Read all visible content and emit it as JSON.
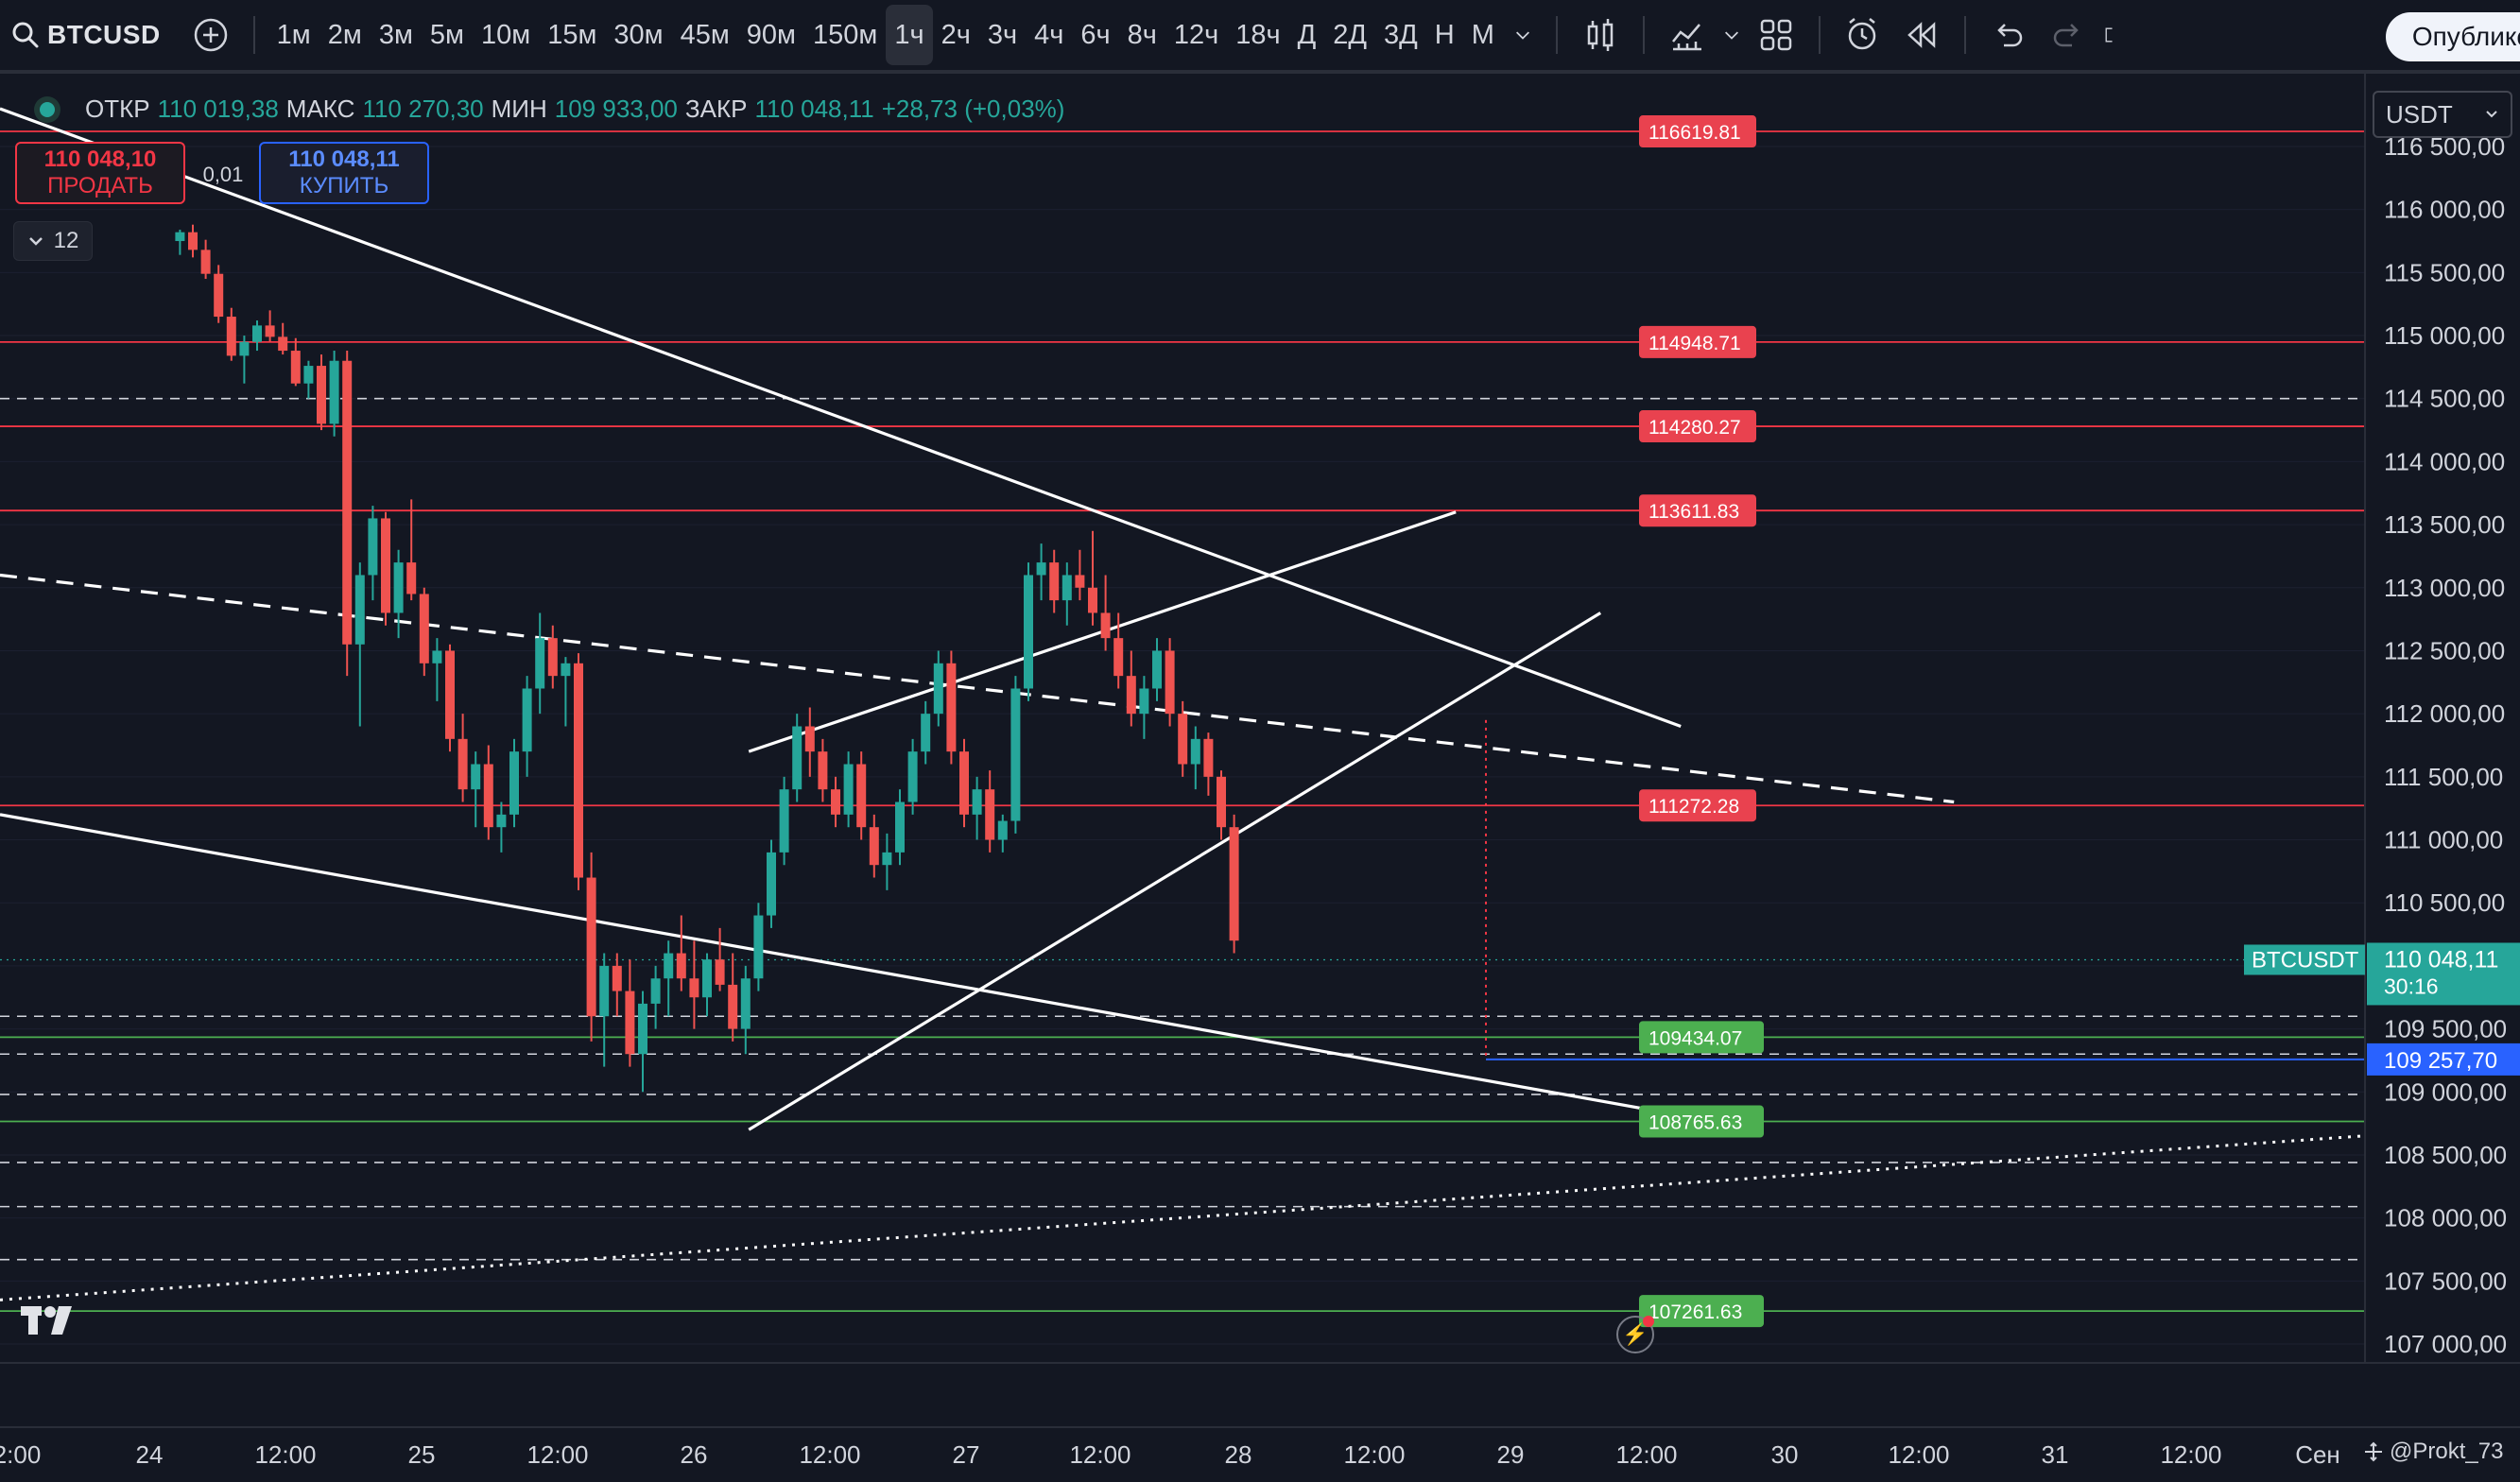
{
  "toolbar": {
    "symbol": "BTCUSD",
    "timeframes": [
      "1м",
      "2м",
      "3м",
      "5м",
      "10м",
      "15м",
      "30м",
      "45м",
      "90м",
      "150м",
      "1ч",
      "2ч",
      "3ч",
      "4ч",
      "6ч",
      "8ч",
      "12ч",
      "18ч",
      "Д",
      "2Д",
      "3Д",
      "Н",
      "М"
    ],
    "active_timeframe": "1ч",
    "publish_label": "Опублико"
  },
  "legend": {
    "open_label": "ОТКР",
    "open": "110 019,38",
    "high_label": "МАКС",
    "high": "110 270,30",
    "low_label": "МИН",
    "low": "109 933,00",
    "close_label": "ЗАКР",
    "close": "110 048,11",
    "change": "+28,73 (+0,03%)"
  },
  "trade": {
    "sell_price": "110 048,10",
    "sell_label": "ПРОДАТЬ",
    "spread": "0,01",
    "buy_price": "110 048,11",
    "buy_label": "КУПИТЬ"
  },
  "collapse_count": "12",
  "currency": "USDT",
  "credit": "@Prokt_73",
  "colors": {
    "up": "#26a69a",
    "down": "#ef5350",
    "bg": "#131722",
    "red_level": "#f23645",
    "green_level": "#4caf50",
    "blue_level": "#2962ff"
  },
  "chart_data": {
    "type": "candlestick",
    "symbol": "BTCUSDT",
    "ylim": [
      106800,
      116900
    ],
    "y_ticks": [
      "116 500,00",
      "116 000,00",
      "115 500,00",
      "115 000,00",
      "114 500,00",
      "114 000,00",
      "113 500,00",
      "113 000,00",
      "112 500,00",
      "112 000,00",
      "111 500,00",
      "111 000,00",
      "110 500,00",
      "110 000,00",
      "109 500,00",
      "109 000,00",
      "108 500,00",
      "108 000,00",
      "107 500,00",
      "107 000,00"
    ],
    "x_ticks": [
      "2:00",
      "24",
      "12:00",
      "25",
      "12:00",
      "26",
      "12:00",
      "27",
      "12:00",
      "28",
      "12:00",
      "29",
      "12:00",
      "30",
      "12:00",
      "31",
      "12:00",
      "Сен"
    ],
    "last_price": {
      "label": "BTCUSDT",
      "value": "110 048,11",
      "countdown": "30:16",
      "price": 110048.11
    },
    "blue_level": {
      "value": "109 257,70",
      "price": 109257.7
    },
    "levels": [
      {
        "label": "116619.81",
        "price": 116619.81,
        "kind": "resistance"
      },
      {
        "label": "114948.71",
        "price": 114948.71,
        "kind": "resistance"
      },
      {
        "label": "114280.27",
        "price": 114280.27,
        "kind": "resistance"
      },
      {
        "label": "113611.83",
        "price": 113611.83,
        "kind": "resistance"
      },
      {
        "label": "111272.28",
        "price": 111272.28,
        "kind": "resistance"
      },
      {
        "label": "109434.07",
        "price": 109434.07,
        "kind": "support"
      },
      {
        "label": "108765.63",
        "price": 108765.63,
        "kind": "support"
      },
      {
        "label": "107261.63",
        "price": 107261.63,
        "kind": "support"
      }
    ],
    "dashed_levels": [
      114500,
      109600,
      109300,
      108980,
      108440,
      108090,
      107670
    ],
    "trend_lines": [
      {
        "style": "solid",
        "from": [
          0,
          116800
        ],
        "to": [
          1046,
          111900
        ]
      },
      {
        "style": "solid",
        "from": [
          0,
          111200
        ],
        "to": [
          1096,
          108700
        ]
      },
      {
        "style": "dashed",
        "from": [
          0,
          113100
        ],
        "to": [
          1216,
          111300
        ]
      },
      {
        "style": "solid",
        "from": [
          466,
          111700
        ],
        "to": [
          906,
          113600
        ]
      },
      {
        "style": "solid",
        "from": [
          466,
          108700
        ],
        "to": [
          996,
          112800
        ]
      },
      {
        "style": "dotted",
        "from": [
          0,
          107350
        ],
        "to": [
          1470,
          108650
        ]
      }
    ],
    "candles": [
      [
        112,
        115750,
        115840,
        115640,
        115820
      ],
      [
        120,
        115820,
        115880,
        115620,
        115680
      ],
      [
        128,
        115680,
        115760,
        115450,
        115490
      ],
      [
        136,
        115490,
        115560,
        115100,
        115150
      ],
      [
        144,
        115150,
        115220,
        114800,
        114840
      ],
      [
        152,
        114840,
        115000,
        114620,
        114950
      ],
      [
        160,
        114950,
        115120,
        114880,
        115080
      ],
      [
        168,
        115080,
        115200,
        114950,
        114990
      ],
      [
        176,
        114990,
        115100,
        114850,
        114880
      ],
      [
        184,
        114880,
        114980,
        114600,
        114620
      ],
      [
        192,
        114620,
        114800,
        114500,
        114760
      ],
      [
        200,
        114760,
        114850,
        114250,
        114300
      ],
      [
        208,
        114300,
        114880,
        114200,
        114800
      ],
      [
        216,
        114800,
        114880,
        112300,
        112550
      ],
      [
        224,
        112550,
        113200,
        111900,
        113100
      ],
      [
        232,
        113100,
        113650,
        112900,
        113550
      ],
      [
        240,
        113550,
        113600,
        112700,
        112800
      ],
      [
        248,
        112800,
        113300,
        112600,
        113200
      ],
      [
        256,
        113200,
        113700,
        112900,
        112950
      ],
      [
        264,
        112950,
        113000,
        112300,
        112400
      ],
      [
        272,
        112400,
        112600,
        112100,
        112500
      ],
      [
        280,
        112500,
        112550,
        111700,
        111800
      ],
      [
        288,
        111800,
        112000,
        111300,
        111400
      ],
      [
        296,
        111400,
        111700,
        111100,
        111600
      ],
      [
        304,
        111600,
        111750,
        111000,
        111100
      ],
      [
        312,
        111100,
        111300,
        110900,
        111200
      ],
      [
        320,
        111200,
        111800,
        111100,
        111700
      ],
      [
        328,
        111700,
        112300,
        111500,
        112200
      ],
      [
        336,
        112200,
        112800,
        112000,
        112600
      ],
      [
        344,
        112600,
        112700,
        112200,
        112300
      ],
      [
        352,
        112300,
        112450,
        111900,
        112400
      ],
      [
        360,
        112400,
        112480,
        110600,
        110700
      ],
      [
        368,
        110700,
        110900,
        109400,
        109600
      ],
      [
        376,
        109600,
        110100,
        109200,
        110000
      ],
      [
        384,
        110000,
        110100,
        109600,
        109800
      ],
      [
        392,
        109800,
        110050,
        109200,
        109300
      ],
      [
        400,
        109300,
        109800,
        109000,
        109700
      ],
      [
        408,
        109700,
        110000,
        109500,
        109900
      ],
      [
        416,
        109900,
        110200,
        109600,
        110100
      ],
      [
        424,
        110100,
        110400,
        109800,
        109900
      ],
      [
        432,
        109900,
        110200,
        109500,
        109750
      ],
      [
        440,
        109750,
        110100,
        109600,
        110050
      ],
      [
        448,
        110050,
        110300,
        109800,
        109850
      ],
      [
        456,
        109850,
        110100,
        109400,
        109500
      ],
      [
        464,
        109500,
        110000,
        109300,
        109900
      ],
      [
        472,
        109900,
        110500,
        109800,
        110400
      ],
      [
        480,
        110400,
        111000,
        110300,
        110900
      ],
      [
        488,
        110900,
        111500,
        110800,
        111400
      ],
      [
        496,
        111400,
        112000,
        111300,
        111900
      ],
      [
        504,
        111900,
        112050,
        111500,
        111700
      ],
      [
        512,
        111700,
        111800,
        111300,
        111400
      ],
      [
        520,
        111400,
        111500,
        111100,
        111200
      ],
      [
        528,
        111200,
        111700,
        111100,
        111600
      ],
      [
        536,
        111600,
        111700,
        111000,
        111100
      ],
      [
        544,
        111100,
        111200,
        110700,
        110800
      ],
      [
        552,
        110800,
        111050,
        110600,
        110900
      ],
      [
        560,
        110900,
        111400,
        110800,
        111300
      ],
      [
        568,
        111300,
        111800,
        111200,
        111700
      ],
      [
        576,
        111700,
        112100,
        111600,
        112000
      ],
      [
        584,
        112000,
        112500,
        111900,
        112400
      ],
      [
        592,
        112400,
        112500,
        111600,
        111700
      ],
      [
        600,
        111700,
        111800,
        111100,
        111200
      ],
      [
        608,
        111200,
        111500,
        111000,
        111400
      ],
      [
        616,
        111400,
        111550,
        110900,
        111000
      ],
      [
        624,
        111000,
        111200,
        110900,
        111150
      ],
      [
        632,
        111150,
        112300,
        111050,
        112200
      ],
      [
        640,
        112200,
        113200,
        112100,
        113100
      ],
      [
        648,
        113100,
        113350,
        112900,
        113200
      ],
      [
        656,
        113200,
        113300,
        112800,
        112900
      ],
      [
        664,
        112900,
        113200,
        112700,
        113100
      ],
      [
        672,
        113100,
        113300,
        112900,
        113000
      ],
      [
        680,
        113000,
        113450,
        112700,
        112800
      ],
      [
        688,
        112800,
        113100,
        112500,
        112600
      ],
      [
        696,
        112600,
        112800,
        112200,
        112300
      ],
      [
        704,
        112300,
        112500,
        111900,
        112000
      ],
      [
        712,
        112000,
        112300,
        111800,
        112200
      ],
      [
        720,
        112200,
        112600,
        112100,
        112500
      ],
      [
        728,
        112500,
        112600,
        111900,
        112000
      ],
      [
        736,
        112000,
        112100,
        111500,
        111600
      ],
      [
        744,
        111600,
        111900,
        111400,
        111800
      ],
      [
        752,
        111800,
        111850,
        111350,
        111500
      ],
      [
        760,
        111500,
        111550,
        111000,
        111100
      ],
      [
        768,
        111100,
        111200,
        110100,
        110200
      ]
    ]
  }
}
